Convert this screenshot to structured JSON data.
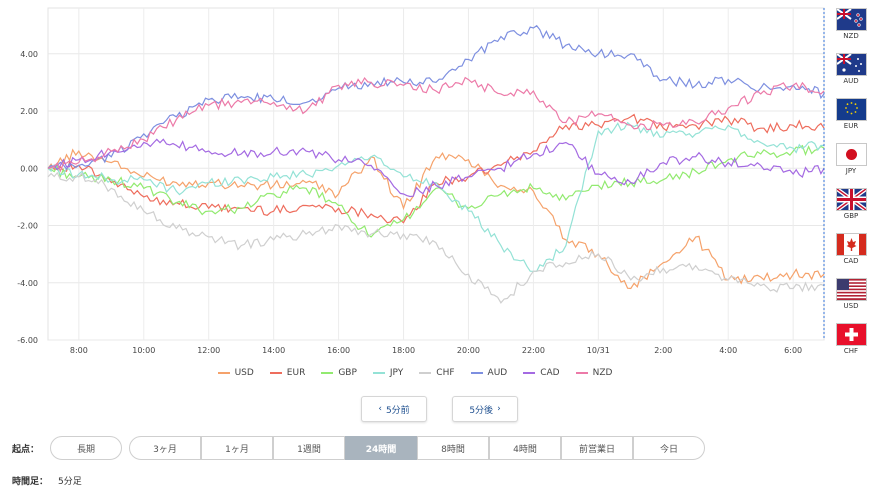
{
  "chart_data": {
    "type": "line",
    "y_ticks": [
      "4.00",
      "2.00",
      "0.00",
      "-2.00",
      "-4.00",
      "-6.00"
    ],
    "y_tick_values": [
      4,
      2,
      0,
      -2,
      -4,
      -6
    ],
    "ylim": [
      -6,
      5.6
    ],
    "x_ticks": [
      "8:00",
      "10:00",
      "12:00",
      "14:00",
      "16:00",
      "18:00",
      "20:00",
      "22:00",
      "10/31",
      "2:00",
      "4:00",
      "6:00"
    ],
    "x_tick_hours": [
      8,
      10,
      12,
      14,
      16,
      18,
      20,
      22,
      24,
      26,
      28,
      30
    ],
    "xlim_hours": [
      7.05,
      30.95
    ],
    "grid": true,
    "legend_position": "bottom",
    "series": [
      {
        "name": "USD",
        "color": "#f5a26b",
        "points": [
          [
            7.05,
            0
          ],
          [
            8,
            0.6
          ],
          [
            9,
            0.2
          ],
          [
            10,
            -0.3
          ],
          [
            11,
            -0.5
          ],
          [
            12,
            -0.5
          ],
          [
            13,
            -0.6
          ],
          [
            14,
            -0.6
          ],
          [
            15,
            -0.5
          ],
          [
            16,
            -0.9
          ],
          [
            17,
            0.4
          ],
          [
            18,
            -1.4
          ],
          [
            19,
            0.4
          ],
          [
            20,
            0.3
          ],
          [
            21,
            -0.6
          ],
          [
            22,
            -0.8
          ],
          [
            23,
            -2.5
          ],
          [
            24,
            -3.0
          ],
          [
            25,
            -4.2
          ],
          [
            26,
            -3.3
          ],
          [
            27,
            -2.4
          ],
          [
            28,
            -3.9
          ],
          [
            29,
            -3.8
          ],
          [
            30,
            -3.7
          ],
          [
            30.95,
            -3.7
          ]
        ]
      },
      {
        "name": "EUR",
        "color": "#ee6d5d",
        "points": [
          [
            7.05,
            0
          ],
          [
            8,
            0.1
          ],
          [
            9,
            -0.5
          ],
          [
            10,
            -1.0
          ],
          [
            11,
            -1.2
          ],
          [
            12,
            -1.4
          ],
          [
            13,
            -1.4
          ],
          [
            14,
            -1.5
          ],
          [
            15,
            -1.3
          ],
          [
            16,
            -1.4
          ],
          [
            17,
            -1.6
          ],
          [
            18,
            -1.9
          ],
          [
            19,
            -0.5
          ],
          [
            20,
            -0.3
          ],
          [
            21,
            0.1
          ],
          [
            22,
            0.6
          ],
          [
            23,
            1.5
          ],
          [
            24,
            1.5
          ],
          [
            25,
            1.8
          ],
          [
            26,
            1.4
          ],
          [
            27,
            1.5
          ],
          [
            28,
            1.7
          ],
          [
            29,
            1.4
          ],
          [
            30,
            1.5
          ],
          [
            30.95,
            1.4
          ]
        ]
      },
      {
        "name": "GBP",
        "color": "#92ea70",
        "points": [
          [
            7.05,
            0
          ],
          [
            8,
            -0.3
          ],
          [
            9,
            -0.4
          ],
          [
            10,
            -0.7
          ],
          [
            11,
            -1.2
          ],
          [
            12,
            -1.5
          ],
          [
            13,
            -1.4
          ],
          [
            14,
            -0.9
          ],
          [
            15,
            -0.7
          ],
          [
            16,
            -1.3
          ],
          [
            17,
            -2.4
          ],
          [
            18,
            -1.8
          ],
          [
            19,
            -0.7
          ],
          [
            20,
            -1.4
          ],
          [
            21,
            -0.9
          ],
          [
            22,
            -0.7
          ],
          [
            23,
            -1.1
          ],
          [
            24,
            -0.6
          ],
          [
            25,
            -0.5
          ],
          [
            26,
            -0.4
          ],
          [
            27,
            -0.1
          ],
          [
            28,
            0.3
          ],
          [
            29,
            0.5
          ],
          [
            30,
            0.6
          ],
          [
            30.95,
            0.7
          ]
        ]
      },
      {
        "name": "JPY",
        "color": "#94e2d6",
        "points": [
          [
            7.05,
            0
          ],
          [
            8,
            -0.2
          ],
          [
            9,
            -0.4
          ],
          [
            10,
            -0.4
          ],
          [
            11,
            -0.8
          ],
          [
            12,
            -0.5
          ],
          [
            13,
            -0.4
          ],
          [
            14,
            -0.3
          ],
          [
            15,
            -0.2
          ],
          [
            16,
            0.1
          ],
          [
            17,
            0.4
          ],
          [
            18,
            -0.3
          ],
          [
            19,
            -0.5
          ],
          [
            20,
            -1.5
          ],
          [
            21,
            -2.7
          ],
          [
            22,
            -3.6
          ],
          [
            23,
            -2.7
          ],
          [
            24,
            1.3
          ],
          [
            25,
            1.5
          ],
          [
            26,
            1.1
          ],
          [
            27,
            1.2
          ],
          [
            28,
            1.5
          ],
          [
            29,
            0.9
          ],
          [
            30,
            0.7
          ],
          [
            30.95,
            0.8
          ]
        ]
      },
      {
        "name": "CHF",
        "color": "#cfcfcf",
        "points": [
          [
            7.05,
            -0.3
          ],
          [
            8,
            -0.3
          ],
          [
            9,
            -0.7
          ],
          [
            10,
            -1.5
          ],
          [
            11,
            -2.1
          ],
          [
            12,
            -2.4
          ],
          [
            13,
            -2.7
          ],
          [
            14,
            -2.5
          ],
          [
            15,
            -2.3
          ],
          [
            16,
            -2.0
          ],
          [
            17,
            -2.3
          ],
          [
            18,
            -2.3
          ],
          [
            19,
            -2.6
          ],
          [
            20,
            -3.7
          ],
          [
            21,
            -4.7
          ],
          [
            22,
            -3.6
          ],
          [
            23,
            -3.3
          ],
          [
            24,
            -3.0
          ],
          [
            25,
            -3.9
          ],
          [
            26,
            -3.5
          ],
          [
            27,
            -3.4
          ],
          [
            28,
            -3.9
          ],
          [
            29,
            -4.1
          ],
          [
            30,
            -4.2
          ],
          [
            30.95,
            -4.1
          ]
        ]
      },
      {
        "name": "AUD",
        "color": "#7d8fe0",
        "points": [
          [
            7.05,
            0
          ],
          [
            8,
            0.1
          ],
          [
            9,
            0.4
          ],
          [
            10,
            1.2
          ],
          [
            11,
            1.8
          ],
          [
            12,
            2.4
          ],
          [
            13,
            2.5
          ],
          [
            14,
            2.4
          ],
          [
            15,
            2.3
          ],
          [
            16,
            2.8
          ],
          [
            17,
            3.0
          ],
          [
            18,
            3.0
          ],
          [
            19,
            3.0
          ],
          [
            20,
            3.8
          ],
          [
            21,
            4.6
          ],
          [
            22,
            4.9
          ],
          [
            23,
            4.3
          ],
          [
            24,
            4.0
          ],
          [
            25,
            4.0
          ],
          [
            26,
            3.1
          ],
          [
            27,
            2.9
          ],
          [
            28,
            3.1
          ],
          [
            29,
            2.8
          ],
          [
            30,
            2.9
          ],
          [
            30.95,
            2.6
          ]
        ]
      },
      {
        "name": "CAD",
        "color": "#a46ae2",
        "points": [
          [
            7.05,
            0
          ],
          [
            8,
            0.3
          ],
          [
            9,
            0.6
          ],
          [
            10,
            0.9
          ],
          [
            11,
            0.8
          ],
          [
            12,
            0.6
          ],
          [
            13,
            0.5
          ],
          [
            14,
            0.6
          ],
          [
            15,
            0.6
          ],
          [
            16,
            0.3
          ],
          [
            17,
            0.1
          ],
          [
            18,
            -0.9
          ],
          [
            19,
            -0.6
          ],
          [
            20,
            -0.3
          ],
          [
            21,
            0.0
          ],
          [
            22,
            0.5
          ],
          [
            23,
            0.9
          ],
          [
            24,
            -0.2
          ],
          [
            25,
            -0.5
          ],
          [
            26,
            0.2
          ],
          [
            27,
            0.4
          ],
          [
            28,
            0.2
          ],
          [
            29,
            0.1
          ],
          [
            30,
            -0.2
          ],
          [
            30.95,
            0.0
          ]
        ]
      },
      {
        "name": "NZD",
        "color": "#ec7aa8",
        "points": [
          [
            7.05,
            0
          ],
          [
            8,
            0.2
          ],
          [
            9,
            0.6
          ],
          [
            10,
            1.0
          ],
          [
            11,
            1.7
          ],
          [
            12,
            2.2
          ],
          [
            13,
            2.3
          ],
          [
            14,
            2.3
          ],
          [
            15,
            2.0
          ],
          [
            16,
            2.9
          ],
          [
            17,
            3.0
          ],
          [
            18,
            2.9
          ],
          [
            19,
            2.7
          ],
          [
            20,
            3.1
          ],
          [
            21,
            2.6
          ],
          [
            22,
            2.7
          ],
          [
            23,
            1.6
          ],
          [
            24,
            1.9
          ],
          [
            25,
            1.5
          ],
          [
            26,
            1.5
          ],
          [
            27,
            1.6
          ],
          [
            28,
            2.1
          ],
          [
            29,
            2.6
          ],
          [
            30,
            2.9
          ],
          [
            30.95,
            2.7
          ]
        ]
      }
    ]
  },
  "flags": [
    {
      "code": "NZD",
      "icon": "nz-flag-icon"
    },
    {
      "code": "AUD",
      "icon": "au-flag-icon"
    },
    {
      "code": "EUR",
      "icon": "eu-flag-icon"
    },
    {
      "code": "JPY",
      "icon": "jp-flag-icon"
    },
    {
      "code": "GBP",
      "icon": "gb-flag-icon"
    },
    {
      "code": "CAD",
      "icon": "ca-flag-icon"
    },
    {
      "code": "USD",
      "icon": "us-flag-icon"
    },
    {
      "code": "CHF",
      "icon": "ch-flag-icon"
    }
  ],
  "nav": {
    "prev_label": "5分前",
    "next_label": "5分後",
    "prev_icon": "chevron-left-icon",
    "next_icon": "chevron-right-icon"
  },
  "start_point": {
    "label": "起点：",
    "long_term_label": "長期",
    "periods": [
      "3ヶ月",
      "1ヶ月",
      "1週間",
      "24時間",
      "8時間",
      "4時間",
      "前営業日",
      "今日"
    ],
    "selected": "24時間"
  },
  "timeframe": {
    "label": "時間足：",
    "value": "5分足"
  },
  "colors": {
    "accent": "#1e4f8f",
    "active_segment": "#a9b4be",
    "divider": "#2f6fd6"
  }
}
